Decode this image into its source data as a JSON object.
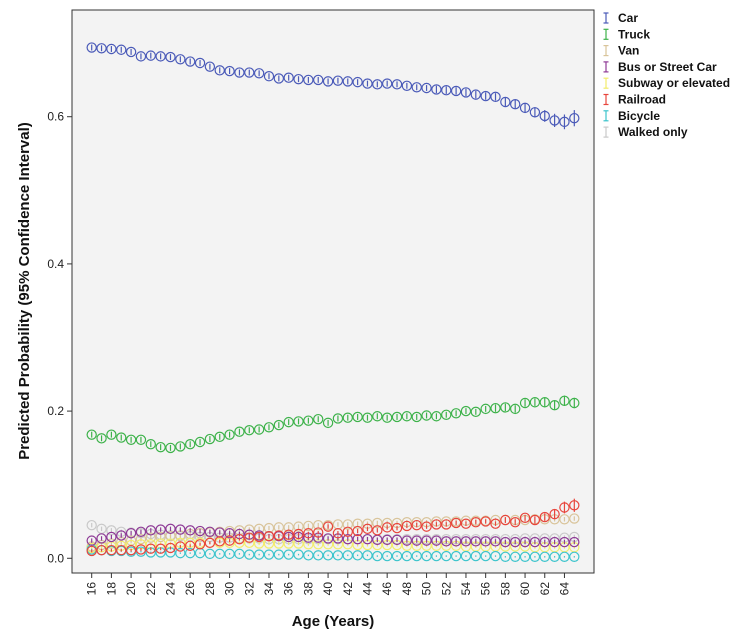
{
  "chart_data": {
    "type": "scatter",
    "title": "",
    "xlabel": "Age (Years)",
    "ylabel": "Predicted Probability (95% Confidence Interval)",
    "xlim": [
      14,
      67
    ],
    "ylim": [
      -0.02,
      0.745
    ],
    "x_ticks": [
      "16",
      "18",
      "20",
      "22",
      "24",
      "26",
      "28",
      "30",
      "32",
      "34",
      "36",
      "38",
      "40",
      "42",
      "44",
      "46",
      "48",
      "50",
      "52",
      "54",
      "56",
      "58",
      "60",
      "62",
      "64"
    ],
    "x_tick_values": [
      16,
      18,
      20,
      22,
      24,
      26,
      28,
      30,
      32,
      34,
      36,
      38,
      40,
      42,
      44,
      46,
      48,
      50,
      52,
      54,
      56,
      58,
      60,
      62,
      64
    ],
    "y_ticks": [
      "0.0",
      "0.2",
      "0.4",
      "0.6"
    ],
    "y_tick_values": [
      0.0,
      0.2,
      0.4,
      0.6
    ],
    "grid": false,
    "legend_position": "right-top",
    "x": [
      16,
      17,
      18,
      19,
      20,
      21,
      22,
      23,
      24,
      25,
      26,
      27,
      28,
      29,
      30,
      31,
      32,
      33,
      34,
      35,
      36,
      37,
      38,
      39,
      40,
      41,
      42,
      43,
      44,
      45,
      46,
      47,
      48,
      49,
      50,
      51,
      52,
      53,
      54,
      55,
      56,
      57,
      58,
      59,
      60,
      61,
      62,
      63,
      64,
      65
    ],
    "series": [
      {
        "name": "Car",
        "color": "#4a5ab8",
        "values": [
          0.694,
          0.693,
          0.692,
          0.691,
          0.688,
          0.682,
          0.683,
          0.682,
          0.681,
          0.678,
          0.675,
          0.673,
          0.668,
          0.663,
          0.662,
          0.66,
          0.66,
          0.659,
          0.655,
          0.652,
          0.653,
          0.651,
          0.65,
          0.65,
          0.648,
          0.649,
          0.648,
          0.647,
          0.645,
          0.644,
          0.645,
          0.644,
          0.642,
          0.64,
          0.639,
          0.637,
          0.636,
          0.635,
          0.633,
          0.63,
          0.628,
          0.627,
          0.62,
          0.617,
          0.612,
          0.606,
          0.601,
          0.595,
          0.593,
          0.598
        ],
        "ci": [
          0.004,
          0.004,
          0.004,
          0.004,
          0.004,
          0.004,
          0.004,
          0.004,
          0.004,
          0.004,
          0.004,
          0.004,
          0.004,
          0.004,
          0.004,
          0.004,
          0.004,
          0.004,
          0.004,
          0.004,
          0.004,
          0.004,
          0.004,
          0.004,
          0.004,
          0.004,
          0.004,
          0.004,
          0.004,
          0.004,
          0.004,
          0.004,
          0.004,
          0.004,
          0.004,
          0.005,
          0.005,
          0.005,
          0.005,
          0.005,
          0.005,
          0.005,
          0.006,
          0.006,
          0.006,
          0.007,
          0.008,
          0.009,
          0.01,
          0.011
        ]
      },
      {
        "name": "Truck",
        "color": "#3db24a",
        "values": [
          0.168,
          0.163,
          0.168,
          0.164,
          0.161,
          0.161,
          0.155,
          0.151,
          0.15,
          0.152,
          0.155,
          0.158,
          0.162,
          0.165,
          0.168,
          0.172,
          0.174,
          0.175,
          0.178,
          0.181,
          0.185,
          0.186,
          0.187,
          0.189,
          0.184,
          0.19,
          0.191,
          0.192,
          0.191,
          0.193,
          0.191,
          0.192,
          0.193,
          0.192,
          0.194,
          0.193,
          0.195,
          0.197,
          0.2,
          0.199,
          0.203,
          0.204,
          0.205,
          0.203,
          0.211,
          0.212,
          0.212,
          0.208,
          0.214,
          0.211
        ],
        "ci": [
          0.004,
          0.004,
          0.004,
          0.004,
          0.004,
          0.004,
          0.004,
          0.004,
          0.004,
          0.004,
          0.004,
          0.004,
          0.004,
          0.004,
          0.004,
          0.004,
          0.004,
          0.004,
          0.004,
          0.004,
          0.004,
          0.004,
          0.004,
          0.004,
          0.004,
          0.004,
          0.004,
          0.004,
          0.004,
          0.004,
          0.004,
          0.004,
          0.004,
          0.004,
          0.004,
          0.004,
          0.004,
          0.004,
          0.004,
          0.004,
          0.004,
          0.005,
          0.005,
          0.005,
          0.005,
          0.005,
          0.006,
          0.006,
          0.007,
          0.007
        ]
      },
      {
        "name": "Van",
        "color": "#d9c49a",
        "values": [
          0.016,
          0.018,
          0.02,
          0.022,
          0.024,
          0.026,
          0.028,
          0.029,
          0.03,
          0.031,
          0.033,
          0.034,
          0.035,
          0.036,
          0.037,
          0.038,
          0.039,
          0.04,
          0.041,
          0.042,
          0.042,
          0.043,
          0.044,
          0.045,
          0.045,
          0.046,
          0.046,
          0.047,
          0.047,
          0.048,
          0.048,
          0.048,
          0.049,
          0.049,
          0.049,
          0.05,
          0.05,
          0.05,
          0.051,
          0.051,
          0.051,
          0.052,
          0.052,
          0.052,
          0.052,
          0.053,
          0.053,
          0.053,
          0.053,
          0.054
        ],
        "ci": [
          0.003,
          0.003,
          0.003,
          0.003,
          0.003,
          0.003,
          0.003,
          0.003,
          0.003,
          0.003,
          0.003,
          0.003,
          0.003,
          0.003,
          0.003,
          0.003,
          0.003,
          0.003,
          0.003,
          0.003,
          0.003,
          0.003,
          0.003,
          0.003,
          0.003,
          0.003,
          0.003,
          0.003,
          0.003,
          0.003,
          0.003,
          0.003,
          0.003,
          0.003,
          0.003,
          0.003,
          0.003,
          0.003,
          0.003,
          0.003,
          0.003,
          0.003,
          0.003,
          0.003,
          0.003,
          0.003,
          0.003,
          0.003,
          0.003,
          0.003
        ]
      },
      {
        "name": "Bus or Street Car",
        "color": "#8e3a96",
        "values": [
          0.024,
          0.027,
          0.029,
          0.031,
          0.034,
          0.036,
          0.038,
          0.039,
          0.04,
          0.039,
          0.038,
          0.037,
          0.036,
          0.035,
          0.034,
          0.033,
          0.032,
          0.031,
          0.03,
          0.03,
          0.029,
          0.029,
          0.028,
          0.028,
          0.027,
          0.027,
          0.026,
          0.026,
          0.026,
          0.025,
          0.025,
          0.025,
          0.024,
          0.024,
          0.024,
          0.024,
          0.023,
          0.023,
          0.023,
          0.023,
          0.023,
          0.023,
          0.022,
          0.022,
          0.022,
          0.022,
          0.022,
          0.022,
          0.022,
          0.022
        ],
        "ci": [
          0.003,
          0.003,
          0.003,
          0.003,
          0.003,
          0.003,
          0.003,
          0.003,
          0.003,
          0.003,
          0.003,
          0.003,
          0.003,
          0.003,
          0.003,
          0.003,
          0.003,
          0.003,
          0.003,
          0.003,
          0.003,
          0.003,
          0.003,
          0.003,
          0.003,
          0.003,
          0.003,
          0.003,
          0.003,
          0.003,
          0.003,
          0.003,
          0.003,
          0.003,
          0.003,
          0.003,
          0.003,
          0.003,
          0.003,
          0.003,
          0.003,
          0.003,
          0.003,
          0.003,
          0.003,
          0.003,
          0.003,
          0.003,
          0.003,
          0.003
        ]
      },
      {
        "name": "Subway or elevated",
        "color": "#f2ec6a",
        "values": [
          0.014,
          0.015,
          0.016,
          0.017,
          0.018,
          0.019,
          0.019,
          0.02,
          0.02,
          0.021,
          0.021,
          0.021,
          0.021,
          0.021,
          0.021,
          0.021,
          0.021,
          0.02,
          0.02,
          0.02,
          0.02,
          0.02,
          0.019,
          0.019,
          0.019,
          0.019,
          0.019,
          0.018,
          0.018,
          0.018,
          0.018,
          0.018,
          0.017,
          0.017,
          0.017,
          0.017,
          0.017,
          0.017,
          0.016,
          0.016,
          0.016,
          0.016,
          0.016,
          0.016,
          0.016,
          0.015,
          0.015,
          0.015,
          0.015,
          0.015
        ],
        "ci": [
          0.002,
          0.002,
          0.002,
          0.002,
          0.002,
          0.002,
          0.002,
          0.002,
          0.002,
          0.002,
          0.002,
          0.002,
          0.002,
          0.002,
          0.002,
          0.002,
          0.002,
          0.002,
          0.002,
          0.002,
          0.002,
          0.002,
          0.002,
          0.002,
          0.002,
          0.002,
          0.002,
          0.002,
          0.002,
          0.002,
          0.002,
          0.002,
          0.002,
          0.002,
          0.002,
          0.002,
          0.002,
          0.002,
          0.002,
          0.002,
          0.002,
          0.002,
          0.002,
          0.002,
          0.002,
          0.002,
          0.002,
          0.002,
          0.002,
          0.002
        ]
      },
      {
        "name": "Railroad",
        "color": "#e8453c",
        "values": [
          0.01,
          0.011,
          0.011,
          0.011,
          0.011,
          0.012,
          0.013,
          0.013,
          0.014,
          0.016,
          0.017,
          0.019,
          0.021,
          0.023,
          0.024,
          0.026,
          0.028,
          0.029,
          0.03,
          0.031,
          0.032,
          0.033,
          0.034,
          0.035,
          0.043,
          0.034,
          0.036,
          0.037,
          0.04,
          0.038,
          0.042,
          0.041,
          0.044,
          0.045,
          0.043,
          0.046,
          0.046,
          0.048,
          0.047,
          0.049,
          0.05,
          0.047,
          0.052,
          0.049,
          0.055,
          0.052,
          0.056,
          0.06,
          0.069,
          0.072
        ],
        "ci": [
          0.002,
          0.002,
          0.002,
          0.002,
          0.002,
          0.002,
          0.002,
          0.002,
          0.002,
          0.002,
          0.002,
          0.002,
          0.002,
          0.002,
          0.002,
          0.002,
          0.002,
          0.002,
          0.002,
          0.002,
          0.002,
          0.002,
          0.002,
          0.002,
          0.003,
          0.003,
          0.003,
          0.003,
          0.003,
          0.003,
          0.003,
          0.003,
          0.003,
          0.003,
          0.003,
          0.003,
          0.003,
          0.003,
          0.003,
          0.003,
          0.003,
          0.003,
          0.004,
          0.004,
          0.004,
          0.005,
          0.005,
          0.006,
          0.008,
          0.009
        ]
      },
      {
        "name": "Bicycle",
        "color": "#3cc4cc",
        "values": [
          0.012,
          0.011,
          0.01,
          0.01,
          0.009,
          0.009,
          0.008,
          0.008,
          0.008,
          0.007,
          0.007,
          0.007,
          0.006,
          0.006,
          0.006,
          0.006,
          0.005,
          0.005,
          0.005,
          0.005,
          0.005,
          0.005,
          0.004,
          0.004,
          0.004,
          0.004,
          0.004,
          0.004,
          0.004,
          0.003,
          0.003,
          0.003,
          0.003,
          0.003,
          0.003,
          0.003,
          0.003,
          0.003,
          0.003,
          0.003,
          0.003,
          0.003,
          0.002,
          0.002,
          0.002,
          0.002,
          0.002,
          0.002,
          0.002,
          0.002
        ],
        "ci": [
          0.001,
          0.001,
          0.001,
          0.001,
          0.001,
          0.001,
          0.001,
          0.001,
          0.001,
          0.001,
          0.001,
          0.001,
          0.001,
          0.001,
          0.001,
          0.001,
          0.001,
          0.001,
          0.001,
          0.001,
          0.001,
          0.001,
          0.001,
          0.001,
          0.001,
          0.001,
          0.001,
          0.001,
          0.001,
          0.001,
          0.001,
          0.001,
          0.001,
          0.001,
          0.001,
          0.001,
          0.001,
          0.001,
          0.001,
          0.001,
          0.001,
          0.001,
          0.001,
          0.001,
          0.001,
          0.001,
          0.001,
          0.001,
          0.001,
          0.001
        ]
      },
      {
        "name": "Walked only",
        "color": "#c9c9c9",
        "values": [
          0.045,
          0.04,
          0.038,
          0.036,
          0.035,
          0.034,
          0.033,
          0.032,
          0.031,
          0.03,
          0.03,
          0.029,
          0.029,
          0.028,
          0.028,
          0.027,
          0.027,
          0.027,
          0.026,
          0.026,
          0.026,
          0.026,
          0.026,
          0.026,
          0.026,
          0.026,
          0.026,
          0.026,
          0.026,
          0.026,
          0.026,
          0.026,
          0.026,
          0.026,
          0.026,
          0.026,
          0.026,
          0.026,
          0.026,
          0.026,
          0.026,
          0.026,
          0.026,
          0.026,
          0.027,
          0.027,
          0.027,
          0.027,
          0.028,
          0.029
        ],
        "ci": [
          0.003,
          0.003,
          0.003,
          0.003,
          0.003,
          0.003,
          0.003,
          0.003,
          0.003,
          0.003,
          0.003,
          0.003,
          0.003,
          0.003,
          0.003,
          0.003,
          0.003,
          0.003,
          0.003,
          0.003,
          0.003,
          0.003,
          0.003,
          0.003,
          0.003,
          0.003,
          0.003,
          0.003,
          0.003,
          0.003,
          0.003,
          0.003,
          0.003,
          0.003,
          0.003,
          0.003,
          0.003,
          0.003,
          0.003,
          0.003,
          0.003,
          0.003,
          0.003,
          0.003,
          0.003,
          0.003,
          0.003,
          0.003,
          0.003,
          0.003
        ]
      }
    ]
  }
}
